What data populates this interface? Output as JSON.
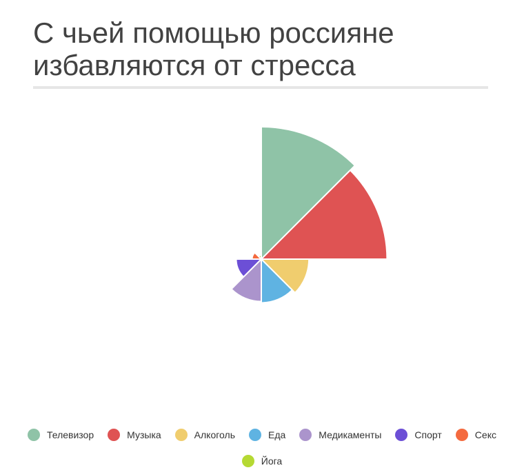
{
  "chart_data": {
    "type": "pie",
    "variant": "polar-area",
    "title": "С чьей помощью россияне избавляются от стресса",
    "legend_position": "bottom",
    "categories": [
      "Телевизор",
      "Музыка",
      "Алкоголь",
      "Еда",
      "Медикаменты",
      "Спорт",
      "Секс",
      "Йога"
    ],
    "values": [
      100,
      95,
      36,
      33,
      32,
      19,
      7,
      3
    ],
    "colors": [
      "#8fc3a7",
      "#df5353",
      "#f0cd6e",
      "#5fb3e2",
      "#ab94cc",
      "#6c4fd6",
      "#f46a3f",
      "#b5d933"
    ]
  }
}
